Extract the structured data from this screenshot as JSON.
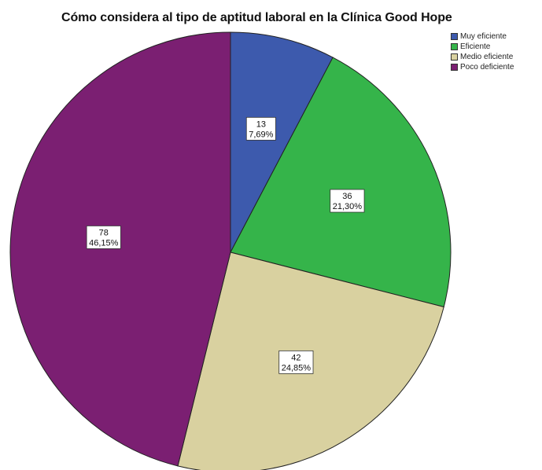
{
  "chart_data": {
    "type": "pie",
    "title": "Cómo considera al tipo de aptitud laboral en la Clínica Good Hope",
    "legend_position": "top-right",
    "slices": [
      {
        "name": "Muy eficiente",
        "count": "13",
        "percent_label": "7,69%",
        "value": 13,
        "color": "#3d5aad"
      },
      {
        "name": "Eficiente",
        "count": "36",
        "percent_label": "21,30%",
        "value": 36,
        "color": "#35b44a"
      },
      {
        "name": "Medio eficiente",
        "count": "42",
        "percent_label": "24,85%",
        "value": 42,
        "color": "#d9d1a0"
      },
      {
        "name": "Poco deficiente",
        "count": "78",
        "percent_label": "46,15%",
        "value": 78,
        "color": "#7b1f72"
      }
    ]
  }
}
